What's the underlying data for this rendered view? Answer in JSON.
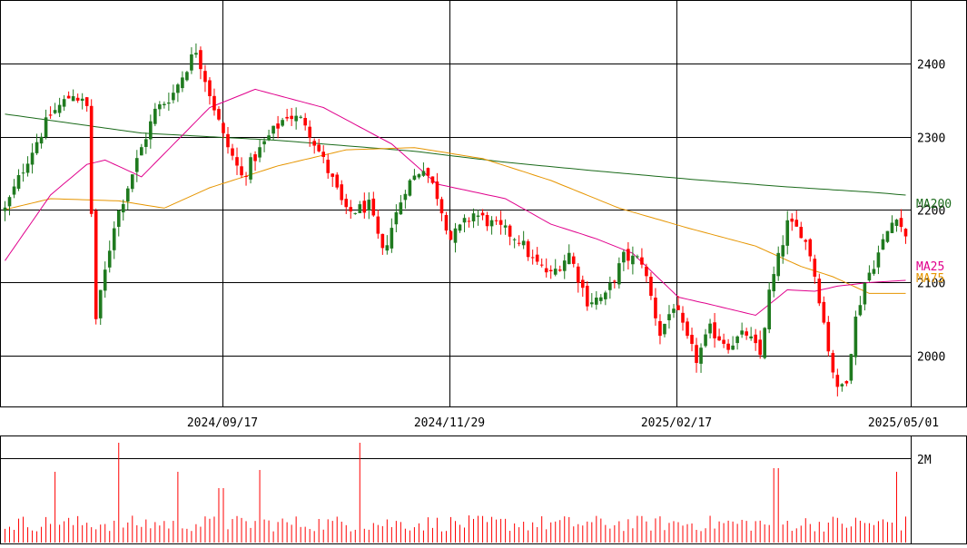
{
  "colors": {
    "up": "#1f7a1f",
    "down": "#ff0000",
    "ma25": "#e0008c",
    "ma75": "#e69500",
    "ma200": "#1a6a1a",
    "grid": "#000000",
    "volume": "#ff0000"
  },
  "chart_data": {
    "type": "candlestick",
    "price_axis": {
      "ticks": [
        2000,
        2100,
        2200,
        2300,
        2400
      ],
      "labels": [
        "2000",
        "2100",
        "2200",
        "2300",
        "2400"
      ],
      "range": [
        1930,
        2485
      ]
    },
    "date_axis": {
      "ticks": [
        "2024/09/17",
        "2024/11/29",
        "2025/02/17",
        "2025/05/01"
      ]
    },
    "volume_axis": {
      "tick_label": "2M",
      "tick_value": 2000000
    },
    "legend": {
      "ma200": "MA200",
      "ma25": "MA25",
      "ma75": "MA75",
      "position": "right"
    },
    "grid": true,
    "candle_count": 199,
    "moving_averages": [
      {
        "name": "MA200",
        "anchors": [
          [
            0,
            2331
          ],
          [
            30,
            2305
          ],
          [
            60,
            2295
          ],
          [
            90,
            2280
          ],
          [
            110,
            2265
          ],
          [
            130,
            2253
          ],
          [
            150,
            2242
          ],
          [
            170,
            2232
          ],
          [
            190,
            2224
          ],
          [
            198,
            2220
          ]
        ]
      },
      {
        "name": "MA75",
        "anchors": [
          [
            0,
            2200
          ],
          [
            10,
            2215
          ],
          [
            25,
            2212
          ],
          [
            35,
            2202
          ],
          [
            45,
            2230
          ],
          [
            60,
            2260
          ],
          [
            75,
            2282
          ],
          [
            90,
            2285
          ],
          [
            105,
            2270
          ],
          [
            120,
            2240
          ],
          [
            135,
            2202
          ],
          [
            150,
            2175
          ],
          [
            165,
            2150
          ],
          [
            175,
            2122
          ],
          [
            182,
            2108
          ],
          [
            190,
            2085
          ],
          [
            198,
            2085
          ]
        ]
      },
      {
        "name": "MA25",
        "anchors": [
          [
            0,
            2130
          ],
          [
            10,
            2220
          ],
          [
            18,
            2262
          ],
          [
            22,
            2268
          ],
          [
            30,
            2245
          ],
          [
            45,
            2340
          ],
          [
            55,
            2365
          ],
          [
            70,
            2340
          ],
          [
            85,
            2290
          ],
          [
            95,
            2235
          ],
          [
            110,
            2215
          ],
          [
            120,
            2180
          ],
          [
            130,
            2160
          ],
          [
            138,
            2140
          ],
          [
            148,
            2080
          ],
          [
            155,
            2070
          ],
          [
            165,
            2055
          ],
          [
            172,
            2090
          ],
          [
            178,
            2088
          ],
          [
            183,
            2095
          ],
          [
            190,
            2100
          ],
          [
            198,
            2103
          ]
        ]
      }
    ],
    "price_anchors": [
      [
        0,
        2200
      ],
      [
        5,
        2270
      ],
      [
        10,
        2330
      ],
      [
        15,
        2360
      ],
      [
        18,
        2340
      ],
      [
        20,
        2050
      ],
      [
        24,
        2180
      ],
      [
        28,
        2250
      ],
      [
        33,
        2335
      ],
      [
        37,
        2360
      ],
      [
        42,
        2420
      ],
      [
        44,
        2380
      ],
      [
        48,
        2300
      ],
      [
        52,
        2245
      ],
      [
        58,
        2300
      ],
      [
        62,
        2330
      ],
      [
        66,
        2320
      ],
      [
        72,
        2240
      ],
      [
        75,
        2195
      ],
      [
        80,
        2205
      ],
      [
        83,
        2140
      ],
      [
        88,
        2230
      ],
      [
        92,
        2260
      ],
      [
        95,
        2220
      ],
      [
        98,
        2160
      ],
      [
        103,
        2195
      ],
      [
        107,
        2180
      ],
      [
        110,
        2170
      ],
      [
        113,
        2160
      ],
      [
        116,
        2130
      ],
      [
        120,
        2110
      ],
      [
        124,
        2140
      ],
      [
        128,
        2075
      ],
      [
        132,
        2080
      ],
      [
        136,
        2135
      ],
      [
        140,
        2130
      ],
      [
        144,
        2030
      ],
      [
        147,
        2070
      ],
      [
        150,
        2020
      ],
      [
        152,
        1995
      ],
      [
        155,
        2035
      ],
      [
        159,
        2015
      ],
      [
        163,
        2030
      ],
      [
        166,
        2000
      ],
      [
        168,
        2085
      ],
      [
        172,
        2180
      ],
      [
        175,
        2170
      ],
      [
        177,
        2140
      ],
      [
        179,
        2080
      ],
      [
        181,
        2010
      ],
      [
        183,
        1950
      ],
      [
        185,
        1970
      ],
      [
        187,
        2050
      ],
      [
        189,
        2100
      ],
      [
        192,
        2140
      ],
      [
        194,
        2170
      ],
      [
        196,
        2195
      ],
      [
        198,
        2160
      ]
    ],
    "volume_profile": "low baseline with spikes"
  }
}
